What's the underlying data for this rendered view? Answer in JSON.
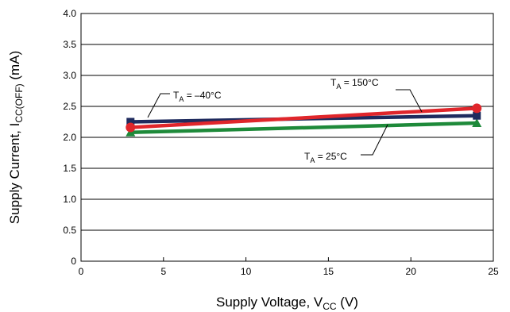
{
  "chart_data": {
    "type": "line",
    "xlabel": {
      "main": "Supply Voltage, V",
      "sub": "CC",
      "tail": " (V)"
    },
    "ylabel": {
      "main": "Supply Current, I",
      "sub": "CC(OFF)",
      "tail": " (mA)"
    },
    "xlim": [
      0,
      25
    ],
    "ylim": [
      0,
      4.0
    ],
    "xticks": [
      0,
      5,
      10,
      15,
      20,
      25
    ],
    "xtick_labels": [
      "0",
      "5",
      "10",
      "15",
      "20",
      "25"
    ],
    "yticks": [
      0,
      0.5,
      1.0,
      1.5,
      2.0,
      2.5,
      3.0,
      3.5,
      4.0
    ],
    "ytick_labels": [
      "0",
      "0.5",
      "1.0",
      "1.5",
      "2.0",
      "2.5",
      "3.0",
      "3.5",
      "4.0"
    ],
    "grid": {
      "horizontal": true,
      "vertical": false
    },
    "series": [
      {
        "name_main": "T",
        "name_sub": "A",
        "name_tail": " = –40°C",
        "color": "#1f2b5e",
        "marker": "square",
        "x": [
          3,
          24
        ],
        "y": [
          2.25,
          2.35
        ]
      },
      {
        "name_main": "T",
        "name_sub": "A",
        "name_tail": " = 25°C",
        "color": "#1e8a3a",
        "marker": "triangle",
        "x": [
          3,
          24
        ],
        "y": [
          2.08,
          2.23
        ]
      },
      {
        "name_main": "T",
        "name_sub": "A",
        "name_tail": " = 150°C",
        "color": "#e0262b",
        "marker": "circle",
        "x": [
          3,
          24
        ],
        "y": [
          2.16,
          2.47
        ]
      }
    ]
  }
}
